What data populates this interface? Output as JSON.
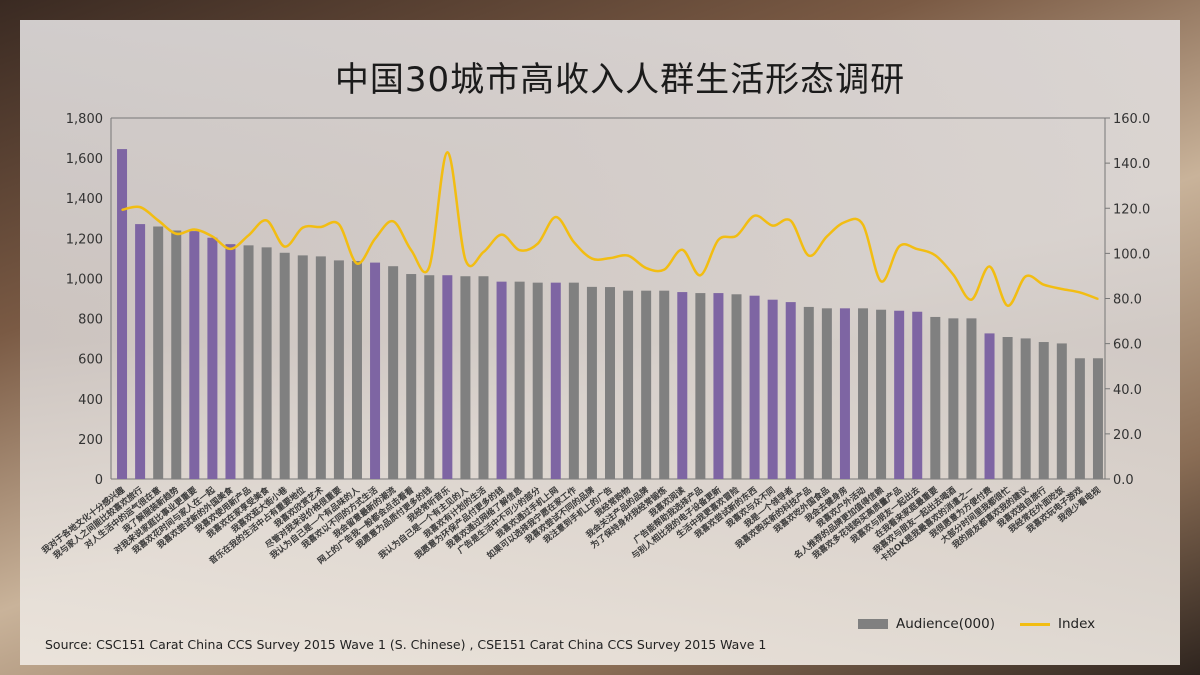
{
  "title": "中国30城市高收入人群生活形态调研",
  "source": "Source: CSC151 Carat China CCS Survey 2015 Wave 1 (S. Chinese) , CSE151 Carat China CCS Survey 2015 Wave 1",
  "colors": {
    "bar_gray": "#808080",
    "bar_purple": "#7e65a3",
    "line": "#f2bd12"
  },
  "chart_data": {
    "type": "bar+line",
    "title": "中国30城市高收入人群生活形态调研",
    "legend": {
      "placement": "bottom-right",
      "entries": [
        "Audience(000)",
        "Index"
      ]
    },
    "y_left": {
      "range": [
        0,
        1800
      ],
      "ticks": [
        "0",
        "200",
        "400",
        "600",
        "800",
        "1,000",
        "1,200",
        "1,400",
        "1,600",
        "1,800"
      ]
    },
    "y_right": {
      "range": [
        0,
        160
      ],
      "ticks": [
        "0.0",
        "20.0",
        "40.0",
        "60.0",
        "80.0",
        "100.0",
        "120.0",
        "140.0",
        "160.0"
      ]
    },
    "grid": false,
    "categories": [
      "我对于各地文化十分感兴趣",
      "我与家人之间能比较喜欢旅行",
      "对人生活中的运气很在意",
      "我了解服装新趋势",
      "对我来说家庭比事业更重要",
      "我喜欢花时间与家人在一起",
      "我喜欢尝试新的外国美食",
      "我喜欢使用新产品",
      "我喜欢在家享受美食",
      "我喜欢逛大街小巷",
      "音乐在我的生活中占有重要地位",
      "我喜欢欣赏艺术",
      "尽管对我来说价格很重要",
      "我认为自己是一个有品味的人",
      "我喜欢以不同的方式生活",
      "我会留意最新的潮流",
      "网上的广告我一般都会点击看看",
      "我愿意为品质付更多的钱",
      "我经常听音乐",
      "我认为自己是一个有主见的人",
      "我喜欢有计划的生活",
      "我愿意为环保产品付更多的钱",
      "我喜欢通过网络了解信息",
      "广告是生活中不可少的部分",
      "我喜欢通过手机上网",
      "如果可以选择我宁愿在家工作",
      "我喜欢尝试不同的品牌",
      "我注意到手机上的广告",
      "我经常购物",
      "我会关注产品的品牌",
      "为了保持身材我经常锻炼",
      "我喜欢阅读",
      "广告能帮助我选择产品",
      "与别人相比我的电子设备更新",
      "生活中我更喜欢冒险",
      "我喜欢尝试新的东西",
      "我喜欢与众不同",
      "我是一个领导者",
      "我喜欢购买新的科技产品",
      "我喜欢吃外国食品",
      "我会去健身房",
      "我喜欢户外活动",
      "名人推荐的品牌更加值得信赖",
      "我喜欢多花钱购买高质量产品",
      "我喜欢与朋友一起出去",
      "在我看来家庭最重要",
      "我喜欢与朋友一起出去喝酒",
      "卡拉OK是我最喜欢的消遣之一",
      "我很愿意为方便付费",
      "大部分时间里我都很忙",
      "我的朋友都喜欢我的建议",
      "我喜欢独自旅行",
      "我经常在外面吃饭",
      "我喜欢玩电子游戏",
      "我很少看电视"
    ],
    "series": [
      {
        "name": "Audience(000)",
        "axis": "left",
        "values": [
          1645,
          1271,
          1259,
          1239,
          1236,
          1203,
          1171,
          1165,
          1155,
          1128,
          1115,
          1110,
          1090,
          1087,
          1079,
          1061,
          1022,
          1016,
          1016,
          1011,
          1011,
          984,
          984,
          979,
          979,
          979,
          958,
          957,
          939,
          939,
          939,
          932,
          927,
          927,
          921,
          914,
          894,
          882,
          858,
          851,
          851,
          851,
          844,
          839,
          834,
          808,
          801,
          801,
          726,
          708,
          701,
          683,
          676,
          602,
          602
        ],
        "highlighted": [
          true,
          true,
          false,
          false,
          true,
          true,
          true,
          false,
          false,
          false,
          false,
          false,
          false,
          false,
          true,
          false,
          false,
          false,
          true,
          false,
          false,
          true,
          false,
          false,
          true,
          false,
          false,
          false,
          false,
          false,
          false,
          true,
          false,
          true,
          false,
          true,
          true,
          true,
          false,
          false,
          true,
          false,
          false,
          true,
          true,
          false,
          false,
          false,
          true,
          false,
          false,
          false,
          false,
          false,
          false
        ]
      },
      {
        "name": "Index",
        "axis": "right",
        "values": [
          119.3,
          120.5,
          114.6,
          108.7,
          110.6,
          107.5,
          102.0,
          108.0,
          114.6,
          103.0,
          111.4,
          111.7,
          112.9,
          95.5,
          106.5,
          114.2,
          101.4,
          94.0,
          144.8,
          97.2,
          100.6,
          108.3,
          101.4,
          104.3,
          116.1,
          105.0,
          97.7,
          97.9,
          99.0,
          93.5,
          92.8,
          101.6,
          90.3,
          106.0,
          107.8,
          116.7,
          112.3,
          114.5,
          99.0,
          107.5,
          113.9,
          112.7,
          87.6,
          103.1,
          101.9,
          99.1,
          90.5,
          79.5,
          94.2,
          76.8,
          89.8,
          86.1,
          84.2,
          82.7,
          79.8
        ]
      }
    ]
  }
}
